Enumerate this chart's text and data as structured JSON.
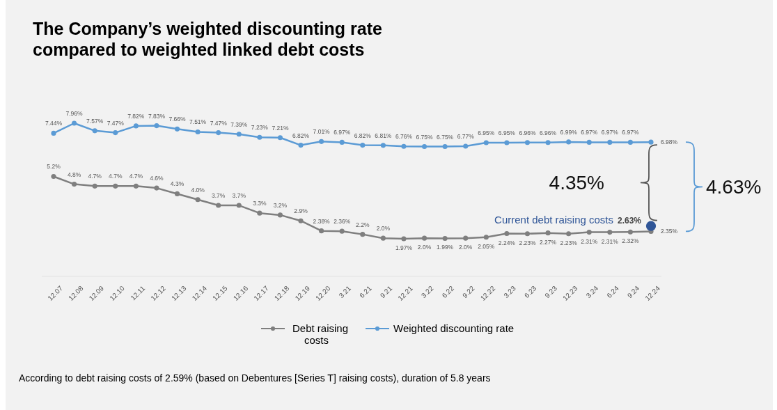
{
  "chart_data": {
    "type": "line",
    "title": "The Company’s weighted discounting rate compared to weighted linked debt costs",
    "categories": [
      "12.07",
      "12.08",
      "12.09",
      "12.10",
      "12.11",
      "12.12",
      "12.13",
      "12.14",
      "12.15",
      "12.16",
      "12.17",
      "12.18",
      "12.19",
      "12.20",
      "3.21",
      "6.21",
      "9.21",
      "12.21",
      "3.22",
      "6.22",
      "9.22",
      "12.22",
      "3.23",
      "6.23",
      "9.23",
      "12.23",
      "3.24",
      "6.24",
      "9.24",
      "12.24"
    ],
    "series": [
      {
        "name": "Debt raising costs",
        "color": "#7f7f7f",
        "values": [
          5.2,
          4.8,
          4.7,
          4.7,
          4.7,
          4.6,
          4.3,
          4.0,
          3.7,
          3.7,
          3.3,
          3.2,
          2.9,
          2.38,
          2.36,
          2.2,
          2.0,
          1.97,
          2.0,
          1.99,
          2.0,
          2.05,
          2.24,
          2.23,
          2.27,
          2.23,
          2.31,
          2.31,
          2.32,
          2.35
        ],
        "value_labels": [
          "5.2%",
          "4.8%",
          "4.7%",
          "4.7%",
          "4.7%",
          "4.6%",
          "4.3%",
          "4.0%",
          "3.7%",
          "3.7%",
          "3.3%",
          "3.2%",
          "2.9%",
          "2.38%",
          "2.36%",
          "2.2%",
          "2.0%",
          "1.97%",
          "2.0%",
          "1.99%",
          "2.0%",
          "2.05%",
          "2.24%",
          "2.23%",
          "2.27%",
          "2.23%",
          "2.31%",
          "2.31%",
          "2.32%",
          "2.35%"
        ]
      },
      {
        "name": "Weighted discounting rate",
        "color": "#5b9bd5",
        "values": [
          7.44,
          7.96,
          7.57,
          7.47,
          7.82,
          7.83,
          7.66,
          7.51,
          7.47,
          7.39,
          7.23,
          7.21,
          6.82,
          7.01,
          6.97,
          6.82,
          6.81,
          6.76,
          6.75,
          6.75,
          6.77,
          6.95,
          6.95,
          6.96,
          6.96,
          6.99,
          6.97,
          6.97,
          6.97,
          6.98
        ],
        "value_labels": [
          "7.44%",
          "7.96%",
          "7.57%",
          "7.47%",
          "7.82%",
          "7.83%",
          "7.66%",
          "7.51%",
          "7.47%",
          "7.39%",
          "7.23%",
          "7.21%",
          "6.82%",
          "7.01%",
          "6.97%",
          "6.82%",
          "6.81%",
          "6.76%",
          "6.75%",
          "6.75%",
          "6.77%",
          "6.95%",
          "6.95%",
          "6.96%",
          "6.96%",
          "6.99%",
          "6.97%",
          "6.97%",
          "6.97%",
          "6.98%"
        ]
      },
      {
        "name": "Current debt raising costs",
        "type": "scatter",
        "color": "#2f5597",
        "x": [
          "12.24"
        ],
        "values": [
          2.63
        ],
        "value_labels": [
          "2.63%"
        ]
      }
    ],
    "marker": "circle",
    "legend": "bottom",
    "annotations": [
      "4.35%",
      "4.63%",
      "According to debt raising costs of 2.59% (based on Debentures [Series T] raising costs), duration of 5.8 years"
    ]
  }
}
